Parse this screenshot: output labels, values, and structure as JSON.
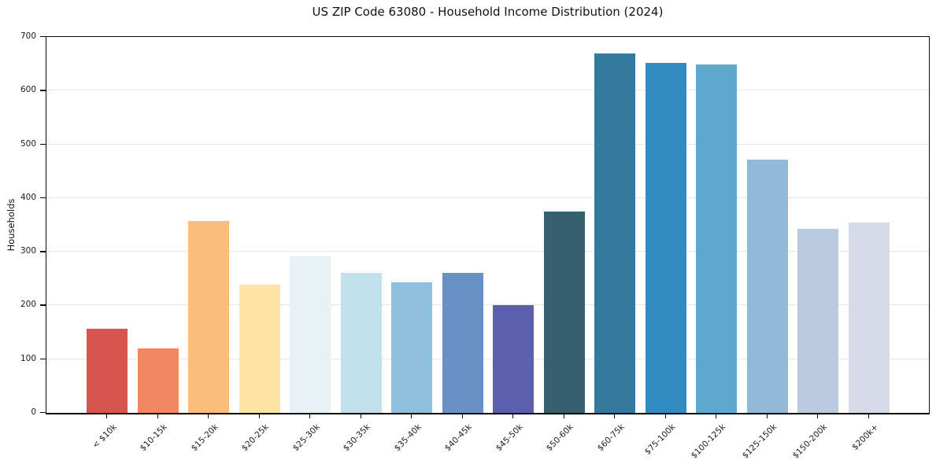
{
  "chart_data": {
    "type": "bar",
    "title": "US ZIP Code 63080 - Household Income Distribution (2024)",
    "xlabel": "",
    "ylabel": "Households",
    "categories": [
      "< $10k",
      "$10-15k",
      "$15-20k",
      "$20-25k",
      "$25-30k",
      "$30-35k",
      "$35-40k",
      "$40-45k",
      "$45-50k",
      "$50-60k",
      "$60-75k",
      "$75-100k",
      "$100-125k",
      "$125-150k",
      "$150-200k",
      "$200k+"
    ],
    "values": [
      156,
      120,
      358,
      238,
      292,
      261,
      243,
      260,
      200,
      375,
      670,
      652,
      649,
      472,
      343,
      354
    ],
    "bar_colors": [
      "#d6554e",
      "#f28764",
      "#fbbd7b",
      "#fde4a5",
      "#e8f2f6",
      "#c3e1ed",
      "#90bedd",
      "#6991c5",
      "#5c5fae",
      "#366070",
      "#35799e",
      "#328bc1",
      "#5ea7cd",
      "#93b9d9",
      "#b9cae1",
      "#d7dae8"
    ],
    "ylim": [
      0,
      700
    ],
    "yticks": [
      0,
      100,
      200,
      300,
      400,
      500,
      600,
      700
    ],
    "grid": "horizontal",
    "gridline_color": "#e7e7e7",
    "legend": "none",
    "background_color": "#ffffff",
    "spine_color": "#0a0a0a"
  }
}
